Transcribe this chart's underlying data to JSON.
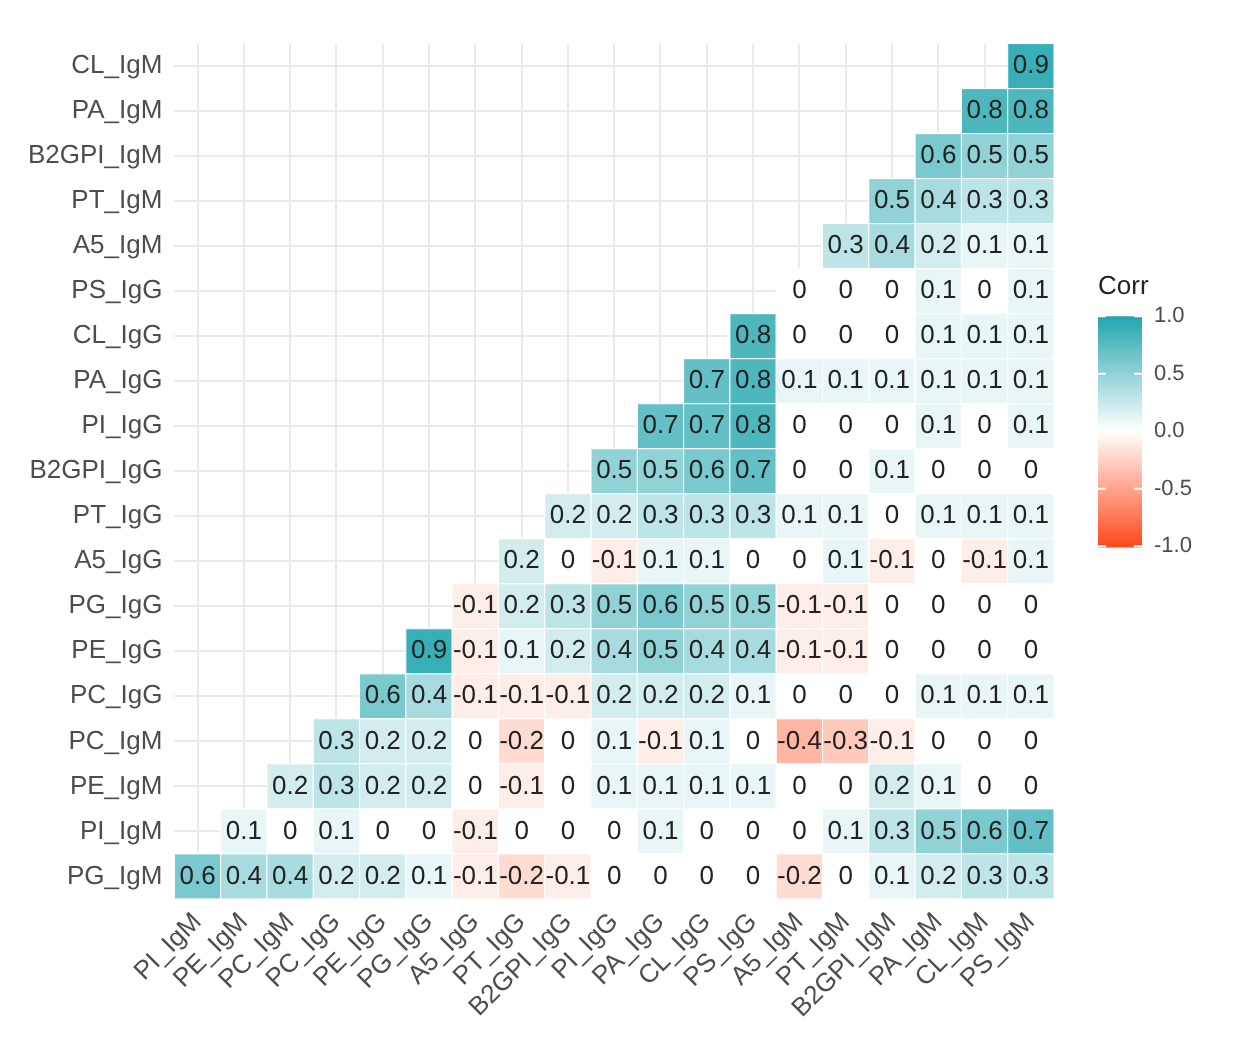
{
  "chart_data": {
    "type": "heatmap",
    "legend_title": "Corr",
    "categories": [
      "PI_IgM",
      "PE_IgM",
      "PC_IgM",
      "PC_IgG",
      "PE_IgG",
      "PG_IgG",
      "A5_IgG",
      "PT_IgG",
      "B2GPI_IgG",
      "PI_IgG",
      "PA_IgG",
      "CL_IgG",
      "PS_IgG",
      "A5_IgM",
      "PT_IgM",
      "B2GPI_IgM",
      "PA_IgM",
      "CL_IgM",
      "PS_IgM"
    ],
    "y_categories": [
      "CL_IgM",
      "PA_IgM",
      "B2GPI_IgM",
      "PT_IgM",
      "A5_IgM",
      "PS_IgG",
      "CL_IgG",
      "PA_IgG",
      "PI_IgG",
      "B2GPI_IgG",
      "PT_IgG",
      "A5_IgG",
      "PG_IgG",
      "PE_IgG",
      "PC_IgG",
      "PC_IgM",
      "PE_IgM",
      "PI_IgM",
      "PG_IgM"
    ],
    "cells": [
      [
        null,
        null,
        null,
        null,
        null,
        null,
        null,
        null,
        null,
        null,
        null,
        null,
        null,
        null,
        null,
        null,
        null,
        null,
        0.9
      ],
      [
        null,
        null,
        null,
        null,
        null,
        null,
        null,
        null,
        null,
        null,
        null,
        null,
        null,
        null,
        null,
        null,
        null,
        0.8,
        0.8
      ],
      [
        null,
        null,
        null,
        null,
        null,
        null,
        null,
        null,
        null,
        null,
        null,
        null,
        null,
        null,
        null,
        null,
        0.6,
        0.5,
        0.5
      ],
      [
        null,
        null,
        null,
        null,
        null,
        null,
        null,
        null,
        null,
        null,
        null,
        null,
        null,
        null,
        null,
        0.5,
        0.4,
        0.3,
        0.3
      ],
      [
        null,
        null,
        null,
        null,
        null,
        null,
        null,
        null,
        null,
        null,
        null,
        null,
        null,
        null,
        0.3,
        0.4,
        0.2,
        0.1,
        0.1
      ],
      [
        null,
        null,
        null,
        null,
        null,
        null,
        null,
        null,
        null,
        null,
        null,
        null,
        null,
        0,
        0,
        0,
        0.1,
        0,
        0.1
      ],
      [
        null,
        null,
        null,
        null,
        null,
        null,
        null,
        null,
        null,
        null,
        null,
        null,
        0.8,
        0,
        0,
        0,
        0.1,
        0.1,
        0.1
      ],
      [
        null,
        null,
        null,
        null,
        null,
        null,
        null,
        null,
        null,
        null,
        null,
        0.7,
        0.8,
        0.1,
        0.1,
        0.1,
        0.1,
        0.1,
        0.1
      ],
      [
        null,
        null,
        null,
        null,
        null,
        null,
        null,
        null,
        null,
        null,
        0.7,
        0.7,
        0.8,
        0,
        0,
        0,
        0.1,
        0,
        0.1
      ],
      [
        null,
        null,
        null,
        null,
        null,
        null,
        null,
        null,
        null,
        0.5,
        0.5,
        0.6,
        0.7,
        0,
        0,
        0.1,
        0,
        0,
        0
      ],
      [
        null,
        null,
        null,
        null,
        null,
        null,
        null,
        null,
        0.2,
        0.2,
        0.3,
        0.3,
        0.3,
        0.1,
        0.1,
        0,
        0.1,
        0.1,
        0.1
      ],
      [
        null,
        null,
        null,
        null,
        null,
        null,
        null,
        0.2,
        0,
        -0.1,
        0.1,
        0.1,
        0,
        0,
        0.1,
        -0.1,
        0,
        -0.1,
        0.1
      ],
      [
        null,
        null,
        null,
        null,
        null,
        null,
        -0.1,
        0.2,
        0.3,
        0.5,
        0.6,
        0.5,
        0.5,
        -0.1,
        -0.1,
        0,
        0,
        0,
        0
      ],
      [
        null,
        null,
        null,
        null,
        null,
        0.9,
        -0.1,
        0.1,
        0.2,
        0.4,
        0.5,
        0.4,
        0.4,
        -0.1,
        -0.1,
        0,
        0,
        0,
        0
      ],
      [
        null,
        null,
        null,
        null,
        0.6,
        0.4,
        -0.1,
        -0.1,
        -0.1,
        0.2,
        0.2,
        0.2,
        0.1,
        0,
        0,
        0,
        0.1,
        0.1,
        0.1
      ],
      [
        null,
        null,
        null,
        0.3,
        0.2,
        0.2,
        0,
        -0.2,
        0,
        0.1,
        -0.1,
        0.1,
        0,
        -0.4,
        -0.3,
        -0.1,
        0,
        0,
        0
      ],
      [
        null,
        null,
        0.2,
        0.3,
        0.2,
        0.2,
        0,
        -0.1,
        0,
        0.1,
        0.1,
        0.1,
        0.1,
        0,
        0,
        0.2,
        0.1,
        0,
        0
      ],
      [
        null,
        0.1,
        0,
        0.1,
        0,
        0,
        -0.1,
        0,
        0,
        0,
        0.1,
        0,
        0,
        0,
        0.1,
        0.3,
        0.5,
        0.6,
        0.7
      ],
      [
        0.6,
        0.4,
        0.4,
        0.2,
        0.2,
        0.1,
        -0.1,
        -0.2,
        -0.1,
        0,
        0,
        0,
        0,
        -0.2,
        0,
        0.1,
        0.2,
        0.3,
        0.3
      ]
    ],
    "colors": [
      "#ff4a1c",
      "#ffffff",
      "#22a5ae"
    ],
    "clim": [
      -1,
      1
    ],
    "cticks": [
      {
        "value": -1,
        "label": "-1.0"
      },
      {
        "value": -0.5,
        "label": "-0.5"
      },
      {
        "value": 0,
        "label": "0.0"
      },
      {
        "value": 0.5,
        "label": "0.5"
      },
      {
        "value": 1,
        "label": "1.0"
      }
    ],
    "data_labels": true,
    "grid": true
  }
}
